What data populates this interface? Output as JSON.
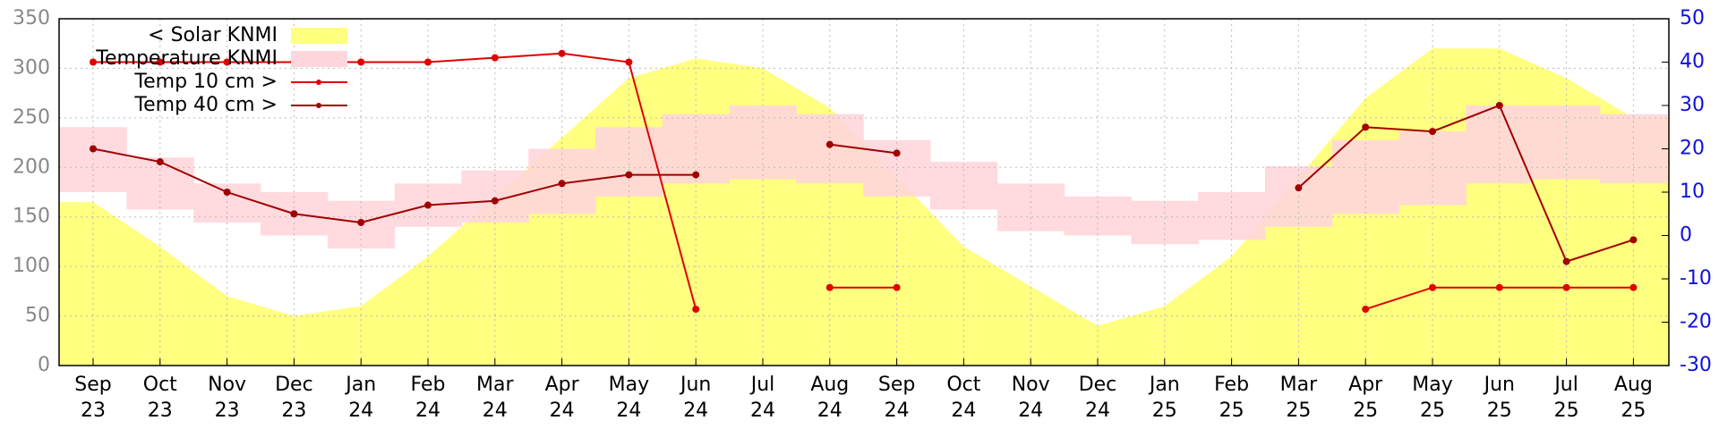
{
  "chart_data": {
    "type": "line",
    "categories": [
      "Sep\n23",
      "Oct\n23",
      "Nov\n23",
      "Dec\n23",
      "Jan\n24",
      "Feb\n24",
      "Mar\n24",
      "Apr\n24",
      "May\n24",
      "Jun\n24",
      "Jul\n24",
      "Aug\n24",
      "Sep\n24",
      "Oct\n24",
      "Nov\n24",
      "Dec\n24",
      "Jan\n25",
      "Feb\n25",
      "Mar\n25",
      "Apr\n25",
      "May\n25",
      "Jun\n25",
      "Jul\n25",
      "Aug\n25"
    ],
    "ylim": [
      0,
      350
    ],
    "yticks": [
      0,
      50,
      100,
      150,
      200,
      250,
      300,
      350
    ],
    "y2lim": [
      -30,
      50
    ],
    "y2ticks": [
      -30,
      -20,
      -10,
      0,
      10,
      20,
      30,
      40,
      50
    ],
    "grid": true,
    "series": [
      {
        "name": "< Solar KNMI",
        "color": "#ffff80",
        "kind": "area",
        "values": [
          165,
          120,
          70,
          50,
          60,
          110,
          170,
          230,
          290,
          310,
          300,
          260,
          190,
          120,
          80,
          40,
          60,
          110,
          190,
          270,
          320,
          320,
          290,
          250
        ]
      },
      {
        "name": "Temperature KNMI",
        "color": "#ffd6dc",
        "kind": "band",
        "axis": "y2",
        "low": [
          10,
          6,
          3,
          0,
          -3,
          2,
          3,
          5,
          9,
          12,
          13,
          12,
          9,
          6,
          1,
          0,
          -2,
          -1,
          2,
          5,
          7,
          12,
          13,
          12
        ],
        "high": [
          25,
          18,
          12,
          10,
          8,
          12,
          15,
          20,
          25,
          28,
          30,
          28,
          22,
          17,
          12,
          9,
          8,
          10,
          16,
          22,
          24,
          30,
          30,
          28
        ]
      },
      {
        "name": "Temp 10 cm >",
        "color": "#e00000",
        "kind": "line",
        "axis": "y2",
        "values": [
          40,
          40,
          40,
          40,
          40,
          40,
          41,
          42,
          40,
          -17,
          null,
          -12,
          -12,
          null,
          null,
          null,
          null,
          null,
          null,
          -17,
          -12,
          -12,
          -12,
          -12
        ]
      },
      {
        "name": "Temp 40 cm >",
        "color": "#a00000",
        "kind": "line",
        "axis": "y2",
        "values": [
          20,
          17,
          10,
          5,
          3,
          7,
          8,
          12,
          14,
          14,
          null,
          21,
          19,
          null,
          null,
          null,
          null,
          null,
          11,
          25,
          24,
          30,
          -6,
          -1
        ]
      }
    ]
  }
}
